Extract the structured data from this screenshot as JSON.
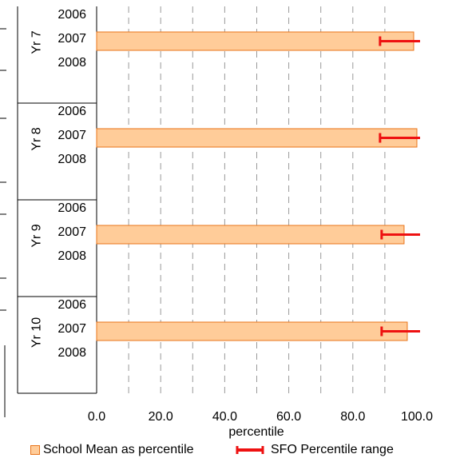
{
  "chart_data": {
    "type": "bar",
    "orientation": "horizontal",
    "xlabel": "percentile",
    "xlim": [
      0,
      100
    ],
    "x_ticks": [
      "0.0",
      "20.0",
      "40.0",
      "60.0",
      "80.0",
      "100.0"
    ],
    "grid": "dashed vertical gridlines every 10",
    "groups": [
      {
        "label": "Yr 7",
        "years": [
          "2006",
          "2007",
          "2008"
        ],
        "value": 99.0,
        "range": [
          88.5,
          101.0
        ]
      },
      {
        "label": "Yr 8",
        "years": [
          "2006",
          "2007",
          "2008"
        ],
        "value": 100.0,
        "range": [
          88.5,
          101.0
        ]
      },
      {
        "label": "Yr 9",
        "years": [
          "2006",
          "2007",
          "2008"
        ],
        "value": 96.0,
        "range": [
          89.0,
          101.0
        ]
      },
      {
        "label": "Yr 10",
        "years": [
          "2006",
          "2007",
          "2008"
        ],
        "value": 97.0,
        "range": [
          89.0,
          101.0
        ]
      }
    ],
    "bar_year": "2007",
    "series": [
      {
        "name": "School Mean as percentile",
        "color": "#ffcc99",
        "edge": "#e8741a"
      },
      {
        "name": "SFO Percentile range",
        "color": "#ee1111"
      }
    ],
    "legend_position": "bottom"
  }
}
